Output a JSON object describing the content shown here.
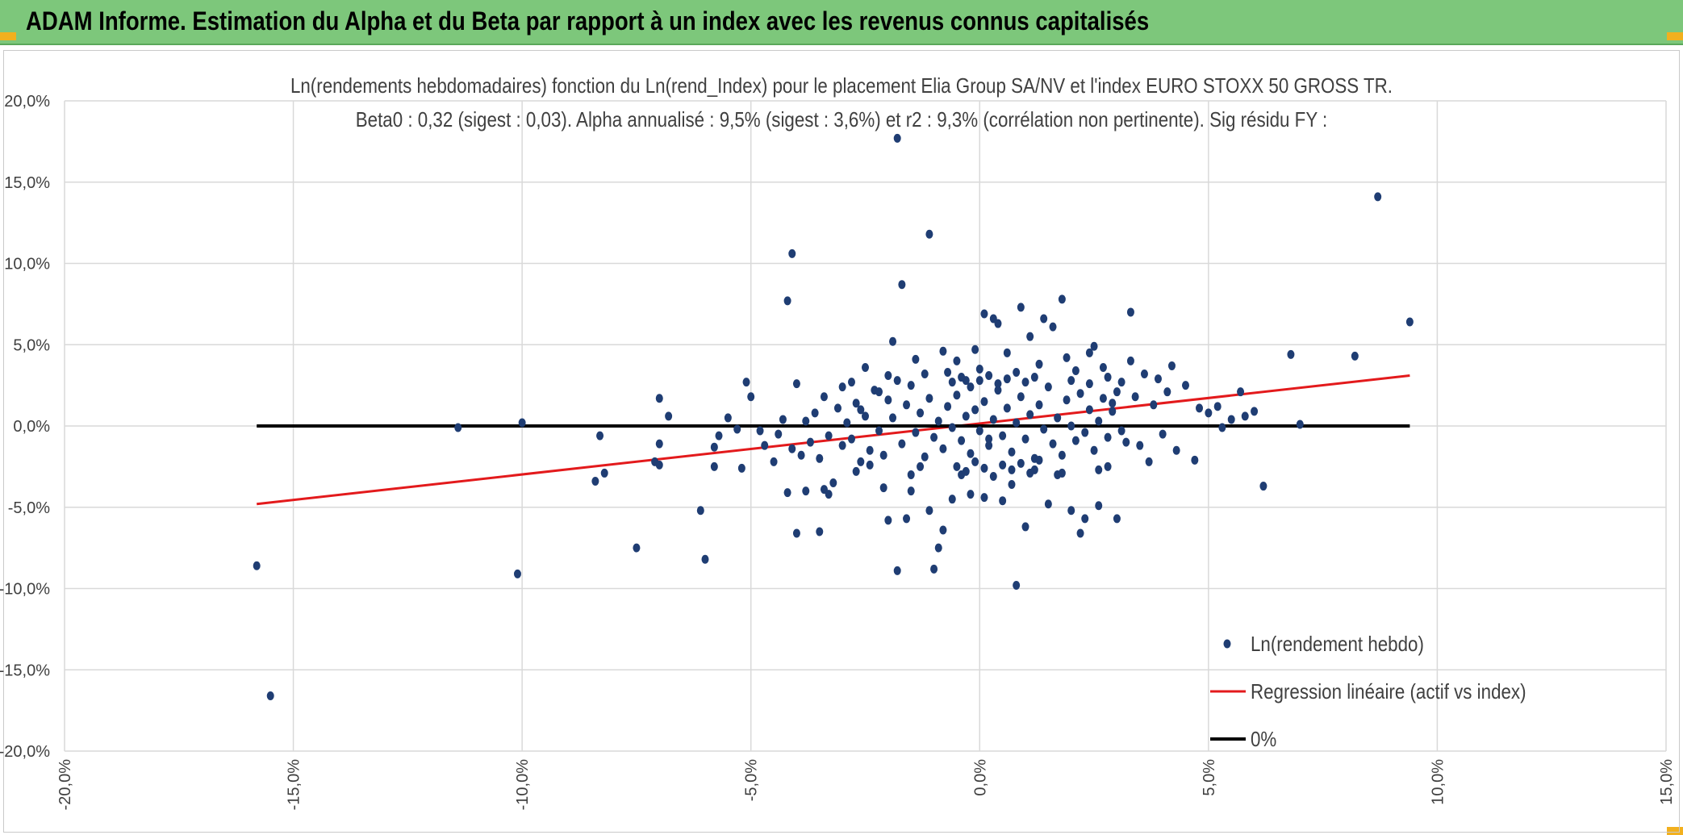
{
  "banner": {
    "title": "ADAM Informe. Estimation du Alpha et du Beta par rapport à un index avec les revenus connus capitalisés"
  },
  "colors": {
    "banner": "#7dc77b",
    "points": "#1f3d73",
    "regression": "#e31a1c",
    "zero": "#000000",
    "grid": "#d9d9d9"
  },
  "chart_data": {
    "type": "scatter",
    "title": "Ln(rendements hebdomadaires) fonction du Ln(rend_Index) pour le placement Elia Group SA/NV et l'index EURO STOXX 50 GROSS TR.",
    "subtitle": "Beta0 : 0,32 (sigest : 0,03). Alpha annualisé : 9,5% (sigest : 3,6%) et r2 : 9,3% (corrélation non pertinente). Sig résidu FY :",
    "xlim": [
      -0.2,
      0.15
    ],
    "ylim": [
      -0.2,
      0.2
    ],
    "x_ticks": [
      -0.2,
      -0.15,
      -0.1,
      -0.05,
      0.0,
      0.05,
      0.1,
      0.15
    ],
    "y_ticks": [
      -0.2,
      -0.15,
      -0.1,
      -0.05,
      0.0,
      0.05,
      0.1,
      0.15,
      0.2
    ],
    "x_tick_labels": [
      "-20,0%",
      "-15,0%",
      "-10,0%",
      "-5,0%",
      "0,0%",
      "5,0%",
      "10,0%",
      "15,0%"
    ],
    "y_tick_labels": [
      "-20,0%",
      "-15,0%",
      "-10,0%",
      "-5,0%",
      "0,0%",
      "5,0%",
      "10,0%",
      "15,0%",
      "20,0%"
    ],
    "grid": true,
    "legend_position": "bottom-right",
    "series": [
      {
        "name": "Ln(rendement hebdo)",
        "kind": "scatter",
        "color": "#1f3d73",
        "points": [
          [
            -0.158,
            -0.086
          ],
          [
            -0.155,
            -0.166
          ],
          [
            -0.114,
            -0.001
          ],
          [
            -0.101,
            -0.091
          ],
          [
            -0.1,
            0.002
          ],
          [
            -0.084,
            -0.034
          ],
          [
            -0.083,
            -0.006
          ],
          [
            -0.082,
            -0.029
          ],
          [
            -0.075,
            -0.075
          ],
          [
            -0.071,
            -0.022
          ],
          [
            -0.07,
            0.017
          ],
          [
            -0.07,
            -0.011
          ],
          [
            -0.07,
            -0.024
          ],
          [
            -0.068,
            0.006
          ],
          [
            -0.061,
            -0.052
          ],
          [
            -0.06,
            -0.082
          ],
          [
            -0.058,
            -0.025
          ],
          [
            -0.058,
            -0.013
          ],
          [
            -0.057,
            -0.006
          ],
          [
            -0.055,
            0.005
          ],
          [
            -0.053,
            -0.002
          ],
          [
            -0.052,
            -0.026
          ],
          [
            -0.051,
            0.027
          ],
          [
            -0.05,
            0.018
          ],
          [
            -0.048,
            -0.003
          ],
          [
            -0.047,
            -0.012
          ],
          [
            -0.045,
            -0.022
          ],
          [
            -0.044,
            -0.005
          ],
          [
            -0.043,
            0.004
          ],
          [
            -0.042,
            -0.041
          ],
          [
            -0.041,
            -0.014
          ],
          [
            -0.04,
            0.026
          ],
          [
            -0.039,
            -0.018
          ],
          [
            -0.038,
            0.003
          ],
          [
            -0.037,
            -0.01
          ],
          [
            -0.036,
            0.008
          ],
          [
            -0.035,
            -0.02
          ],
          [
            -0.034,
            0.018
          ],
          [
            -0.033,
            -0.006
          ],
          [
            -0.032,
            -0.035
          ],
          [
            -0.031,
            0.011
          ],
          [
            -0.03,
            -0.012
          ],
          [
            -0.042,
            0.077
          ],
          [
            -0.041,
            0.106
          ],
          [
            -0.038,
            -0.04
          ],
          [
            -0.04,
            -0.066
          ],
          [
            -0.035,
            -0.065
          ],
          [
            -0.034,
            -0.039
          ],
          [
            -0.033,
            -0.042
          ],
          [
            -0.03,
            0.024
          ],
          [
            -0.028,
            -0.008
          ],
          [
            -0.027,
            0.014
          ],
          [
            -0.026,
            -0.022
          ],
          [
            -0.025,
            0.006
          ],
          [
            -0.024,
            -0.015
          ],
          [
            -0.023,
            0.022
          ],
          [
            -0.022,
            -0.003
          ],
          [
            -0.021,
            -0.038
          ],
          [
            -0.02,
            0.016
          ],
          [
            -0.02,
            -0.058
          ],
          [
            -0.019,
            0.052
          ],
          [
            -0.018,
            -0.089
          ],
          [
            -0.018,
            0.177
          ],
          [
            -0.017,
            0.087
          ],
          [
            -0.016,
            -0.057
          ],
          [
            -0.015,
            0.025
          ],
          [
            -0.015,
            -0.04
          ],
          [
            -0.014,
            0.041
          ],
          [
            -0.013,
            -0.025
          ],
          [
            -0.012,
            0.032
          ],
          [
            -0.011,
            0.118
          ],
          [
            -0.011,
            -0.052
          ],
          [
            -0.01,
            -0.088
          ],
          [
            -0.009,
            -0.075
          ],
          [
            -0.008,
            -0.064
          ],
          [
            -0.008,
            0.046
          ],
          [
            -0.007,
            0.033
          ],
          [
            -0.006,
            -0.045
          ],
          [
            -0.005,
            0.04
          ],
          [
            -0.004,
            -0.03
          ],
          [
            -0.003,
            0.028
          ],
          [
            -0.002,
            -0.042
          ],
          [
            -0.001,
            0.047
          ],
          [
            0.0,
            0.035
          ],
          [
            0.001,
            -0.044
          ],
          [
            0.001,
            0.069
          ],
          [
            0.002,
            -0.008
          ],
          [
            0.003,
            0.066
          ],
          [
            0.004,
            0.063
          ],
          [
            0.005,
            -0.046
          ],
          [
            0.006,
            0.045
          ],
          [
            0.007,
            -0.036
          ],
          [
            0.008,
            -0.098
          ],
          [
            0.009,
            0.073
          ],
          [
            0.01,
            -0.062
          ],
          [
            0.011,
            0.055
          ],
          [
            0.012,
            -0.027
          ],
          [
            0.013,
            0.038
          ],
          [
            0.014,
            0.066
          ],
          [
            0.015,
            -0.048
          ],
          [
            0.016,
            0.061
          ],
          [
            0.017,
            -0.03
          ],
          [
            0.018,
            0.078
          ],
          [
            0.019,
            0.042
          ],
          [
            0.02,
            -0.052
          ],
          [
            0.021,
            0.034
          ],
          [
            0.022,
            -0.066
          ],
          [
            0.023,
            -0.057
          ],
          [
            0.024,
            0.045
          ],
          [
            0.025,
            0.049
          ],
          [
            0.026,
            -0.049
          ],
          [
            0.027,
            0.036
          ],
          [
            0.028,
            -0.025
          ],
          [
            0.029,
            0.014
          ],
          [
            0.03,
            -0.057
          ],
          [
            0.031,
            0.027
          ],
          [
            0.032,
            -0.01
          ],
          [
            0.033,
            0.04
          ],
          [
            0.033,
            0.07
          ],
          [
            0.034,
            0.018
          ],
          [
            0.035,
            -0.012
          ],
          [
            0.036,
            0.032
          ],
          [
            0.037,
            -0.022
          ],
          [
            0.038,
            0.013
          ],
          [
            0.039,
            0.029
          ],
          [
            0.04,
            -0.005
          ],
          [
            0.041,
            0.021
          ],
          [
            0.042,
            0.037
          ],
          [
            0.043,
            -0.015
          ],
          [
            0.045,
            0.025
          ],
          [
            0.047,
            -0.021
          ],
          [
            0.048,
            0.011
          ],
          [
            0.05,
            0.008
          ],
          [
            0.052,
            0.012
          ],
          [
            0.053,
            -0.001
          ],
          [
            0.055,
            0.004
          ],
          [
            0.057,
            0.021
          ],
          [
            0.058,
            0.006
          ],
          [
            0.06,
            0.009
          ],
          [
            0.062,
            -0.037
          ],
          [
            0.068,
            0.044
          ],
          [
            0.07,
            0.001
          ],
          [
            0.082,
            0.043
          ],
          [
            0.087,
            0.141
          ],
          [
            0.094,
            0.064
          ],
          [
            -0.025,
            0.036
          ],
          [
            -0.029,
            0.002
          ],
          [
            -0.027,
            -0.028
          ],
          [
            -0.026,
            0.01
          ],
          [
            -0.022,
            0.021
          ],
          [
            -0.021,
            -0.018
          ],
          [
            -0.019,
            0.005
          ],
          [
            -0.017,
            -0.011
          ],
          [
            -0.016,
            0.013
          ],
          [
            -0.014,
            -0.004
          ],
          [
            -0.013,
            0.008
          ],
          [
            -0.012,
            -0.019
          ],
          [
            -0.011,
            0.017
          ],
          [
            -0.01,
            -0.007
          ],
          [
            -0.009,
            0.003
          ],
          [
            -0.008,
            -0.014
          ],
          [
            -0.007,
            0.012
          ],
          [
            -0.006,
            -0.001
          ],
          [
            -0.005,
            0.019
          ],
          [
            -0.004,
            -0.009
          ],
          [
            -0.003,
            0.006
          ],
          [
            -0.002,
            -0.017
          ],
          [
            -0.001,
            0.01
          ],
          [
            0.0,
            -0.003
          ],
          [
            0.001,
            0.015
          ],
          [
            0.002,
            -0.012
          ],
          [
            0.003,
            0.004
          ],
          [
            0.004,
            0.022
          ],
          [
            0.005,
            -0.006
          ],
          [
            0.006,
            0.011
          ],
          [
            0.007,
            -0.016
          ],
          [
            0.008,
            0.002
          ],
          [
            0.009,
            0.018
          ],
          [
            0.01,
            -0.008
          ],
          [
            0.011,
            0.007
          ],
          [
            0.012,
            -0.02
          ],
          [
            0.013,
            0.013
          ],
          [
            0.014,
            -0.002
          ],
          [
            0.015,
            0.024
          ],
          [
            0.016,
            -0.011
          ],
          [
            0.017,
            0.005
          ],
          [
            0.018,
            -0.018
          ],
          [
            0.019,
            0.016
          ],
          [
            0.02,
            0.0
          ],
          [
            0.021,
            -0.009
          ],
          [
            0.022,
            0.02
          ],
          [
            0.023,
            -0.004
          ],
          [
            0.024,
            0.01
          ],
          [
            0.025,
            -0.015
          ],
          [
            0.026,
            0.003
          ],
          [
            0.027,
            0.017
          ],
          [
            0.028,
            -0.007
          ],
          [
            0.029,
            0.009
          ],
          [
            0.03,
            0.021
          ],
          [
            0.031,
            -0.003
          ],
          [
            -0.006,
            0.027
          ],
          [
            -0.004,
            0.03
          ],
          [
            -0.002,
            0.024
          ],
          [
            0.0,
            0.028
          ],
          [
            0.002,
            0.031
          ],
          [
            0.004,
            0.026
          ],
          [
            0.006,
            0.029
          ],
          [
            0.008,
            0.033
          ],
          [
            0.01,
            0.027
          ],
          [
            0.012,
            0.03
          ],
          [
            -0.005,
            -0.025
          ],
          [
            -0.003,
            -0.028
          ],
          [
            -0.001,
            -0.022
          ],
          [
            0.001,
            -0.026
          ],
          [
            0.003,
            -0.031
          ],
          [
            0.005,
            -0.024
          ],
          [
            0.007,
            -0.027
          ],
          [
            0.009,
            -0.023
          ],
          [
            0.011,
            -0.029
          ],
          [
            0.013,
            -0.021
          ],
          [
            -0.015,
            -0.03
          ],
          [
            -0.018,
            0.028
          ],
          [
            0.02,
            0.028
          ],
          [
            0.018,
            -0.029
          ],
          [
            0.024,
            0.026
          ],
          [
            -0.024,
            -0.024
          ],
          [
            0.026,
            -0.027
          ],
          [
            -0.02,
            0.031
          ],
          [
            0.028,
            0.03
          ],
          [
            -0.028,
            0.027
          ]
        ]
      },
      {
        "name": "Regression linéaire (actif vs index)",
        "kind": "line",
        "color": "#e31a1c",
        "x": [
          -0.158,
          0.094
        ],
        "y": [
          -0.048,
          0.031
        ]
      },
      {
        "name": "0%",
        "kind": "line",
        "color": "#000000",
        "x": [
          -0.158,
          0.094
        ],
        "y": [
          0.0,
          0.0
        ]
      }
    ]
  }
}
